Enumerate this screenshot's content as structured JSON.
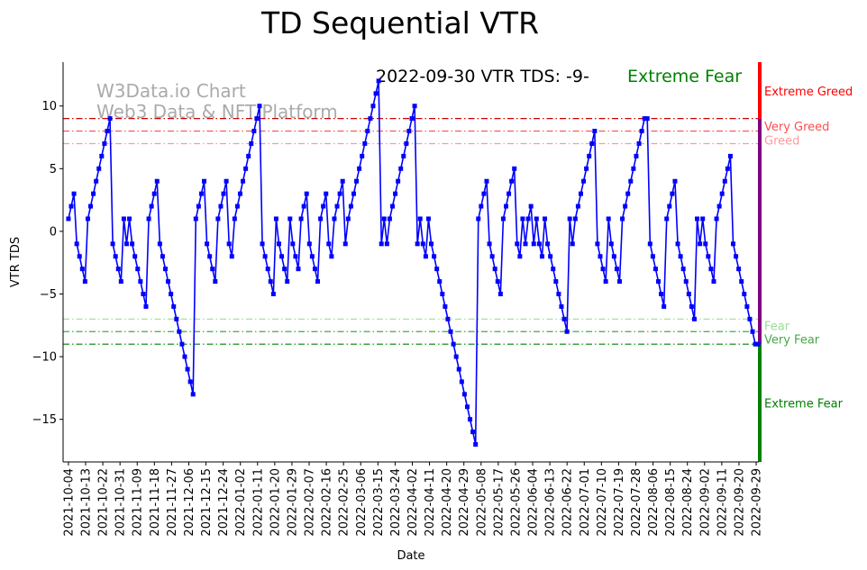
{
  "chart_data": {
    "type": "line",
    "title": "TD Sequential VTR",
    "xlabel": "Date",
    "ylabel": "VTR TDS",
    "ylim": [
      -18.4,
      13.5
    ],
    "start_date": "2021-10-04",
    "end_date": "2022-09-30",
    "yticks": [
      10,
      5,
      0,
      -5,
      -10,
      -15
    ],
    "xticks": [
      "2021-10-04",
      "2021-10-13",
      "2021-10-22",
      "2021-10-31",
      "2021-11-09",
      "2021-11-18",
      "2021-11-27",
      "2021-12-06",
      "2021-12-15",
      "2021-12-24",
      "2022-01-02",
      "2022-01-11",
      "2022-01-20",
      "2022-01-29",
      "2022-02-07",
      "2022-02-16",
      "2022-02-25",
      "2022-03-06",
      "2022-03-15",
      "2022-03-24",
      "2022-04-02",
      "2022-04-11",
      "2022-04-20",
      "2022-04-29",
      "2022-05-08",
      "2022-05-17",
      "2022-05-26",
      "2022-06-04",
      "2022-06-13",
      "2022-06-22",
      "2022-07-01",
      "2022-07-10",
      "2022-07-19",
      "2022-07-28",
      "2022-08-06",
      "2022-08-15",
      "2022-08-24",
      "2022-09-02",
      "2022-09-11",
      "2022-09-20",
      "2022-09-29"
    ],
    "series": [
      {
        "name": "VTR TDS",
        "color": "#0000ff",
        "values": [
          1,
          2,
          3,
          -1,
          -2,
          -3,
          -4,
          1,
          2,
          3,
          4,
          5,
          6,
          7,
          8,
          9,
          -1,
          -2,
          -3,
          -4,
          1,
          -1,
          1,
          -1,
          -2,
          -3,
          -4,
          -5,
          -6,
          1,
          2,
          3,
          4,
          -1,
          -2,
          -3,
          -4,
          -5,
          -6,
          -7,
          -8,
          -9,
          -10,
          -11,
          -12,
          -13,
          1,
          2,
          3,
          4,
          -1,
          -2,
          -3,
          -4,
          1,
          2,
          3,
          4,
          -1,
          -2,
          1,
          2,
          3,
          4,
          5,
          6,
          7,
          8,
          9,
          10,
          -1,
          -2,
          -3,
          -4,
          -5,
          1,
          -1,
          -2,
          -3,
          -4,
          1,
          -1,
          -2,
          -3,
          1,
          2,
          3,
          -1,
          -2,
          -3,
          -4,
          1,
          2,
          3,
          -1,
          -2,
          1,
          2,
          3,
          4,
          -1,
          1,
          2,
          3,
          4,
          5,
          6,
          7,
          8,
          9,
          10,
          11,
          12,
          -1,
          1,
          -1,
          1,
          2,
          3,
          4,
          5,
          6,
          7,
          8,
          9,
          10,
          -1,
          1,
          -1,
          -2,
          1,
          -1,
          -2,
          -3,
          -4,
          -5,
          -6,
          -7,
          -8,
          -9,
          -10,
          -11,
          -12,
          -13,
          -14,
          -15,
          -16,
          -17,
          1,
          2,
          3,
          4,
          -1,
          -2,
          -3,
          -4,
          -5,
          1,
          2,
          3,
          4,
          5,
          -1,
          -2,
          1,
          -1,
          1,
          2,
          -1,
          1,
          -1,
          -2,
          1,
          -1,
          -2,
          -3,
          -4,
          -5,
          -6,
          -7,
          -8,
          1,
          -1,
          1,
          2,
          3,
          4,
          5,
          6,
          7,
          8,
          -1,
          -2,
          -3,
          -4,
          1,
          -1,
          -2,
          -3,
          -4,
          1,
          2,
          3,
          4,
          5,
          6,
          7,
          8,
          9,
          9,
          -1,
          -2,
          -3,
          -4,
          -5,
          -6,
          1,
          2,
          3,
          4,
          -1,
          -2,
          -3,
          -4,
          -5,
          -6,
          -7,
          1,
          -1,
          1,
          -1,
          -2,
          -3,
          -4,
          1,
          2,
          3,
          4,
          5,
          6,
          -1,
          -2,
          -3,
          -4,
          -5,
          -6,
          -7,
          -8,
          -9,
          -9
        ]
      }
    ],
    "thresholds": [
      {
        "label": "Extreme Greed",
        "value": 9,
        "color": "#cc0000",
        "text_color": "#ff0000",
        "label_value": 11.2
      },
      {
        "label": "Very Greed",
        "value": 8,
        "color": "#ff4d4d",
        "text_color": "#ff4d4d",
        "label_value": 8.4
      },
      {
        "label": "Greed",
        "value": 7,
        "color": "#ff9999",
        "text_color": "#ff9999",
        "label_value": 7.3
      },
      {
        "label": "Fear",
        "value": -7,
        "color": "#99dd99",
        "text_color": "#99dd99",
        "label_value": -7.5
      },
      {
        "label": "Very Fear",
        "value": -8,
        "color": "#44aa44",
        "text_color": "#44aa44",
        "label_value": -8.6
      },
      {
        "label": "Extreme Fear",
        "value": -9,
        "color": "#008000",
        "text_color": "#008000",
        "label_value": -13.7
      }
    ],
    "annotation": {
      "text": "2022-09-30 VTR TDS: -9-",
      "status": "Extreme Fear",
      "status_color": "#008000"
    },
    "watermark": [
      "W3Data.io Chart",
      "Web3 Data & NFT Platform"
    ],
    "legend": "none",
    "grid": false
  }
}
